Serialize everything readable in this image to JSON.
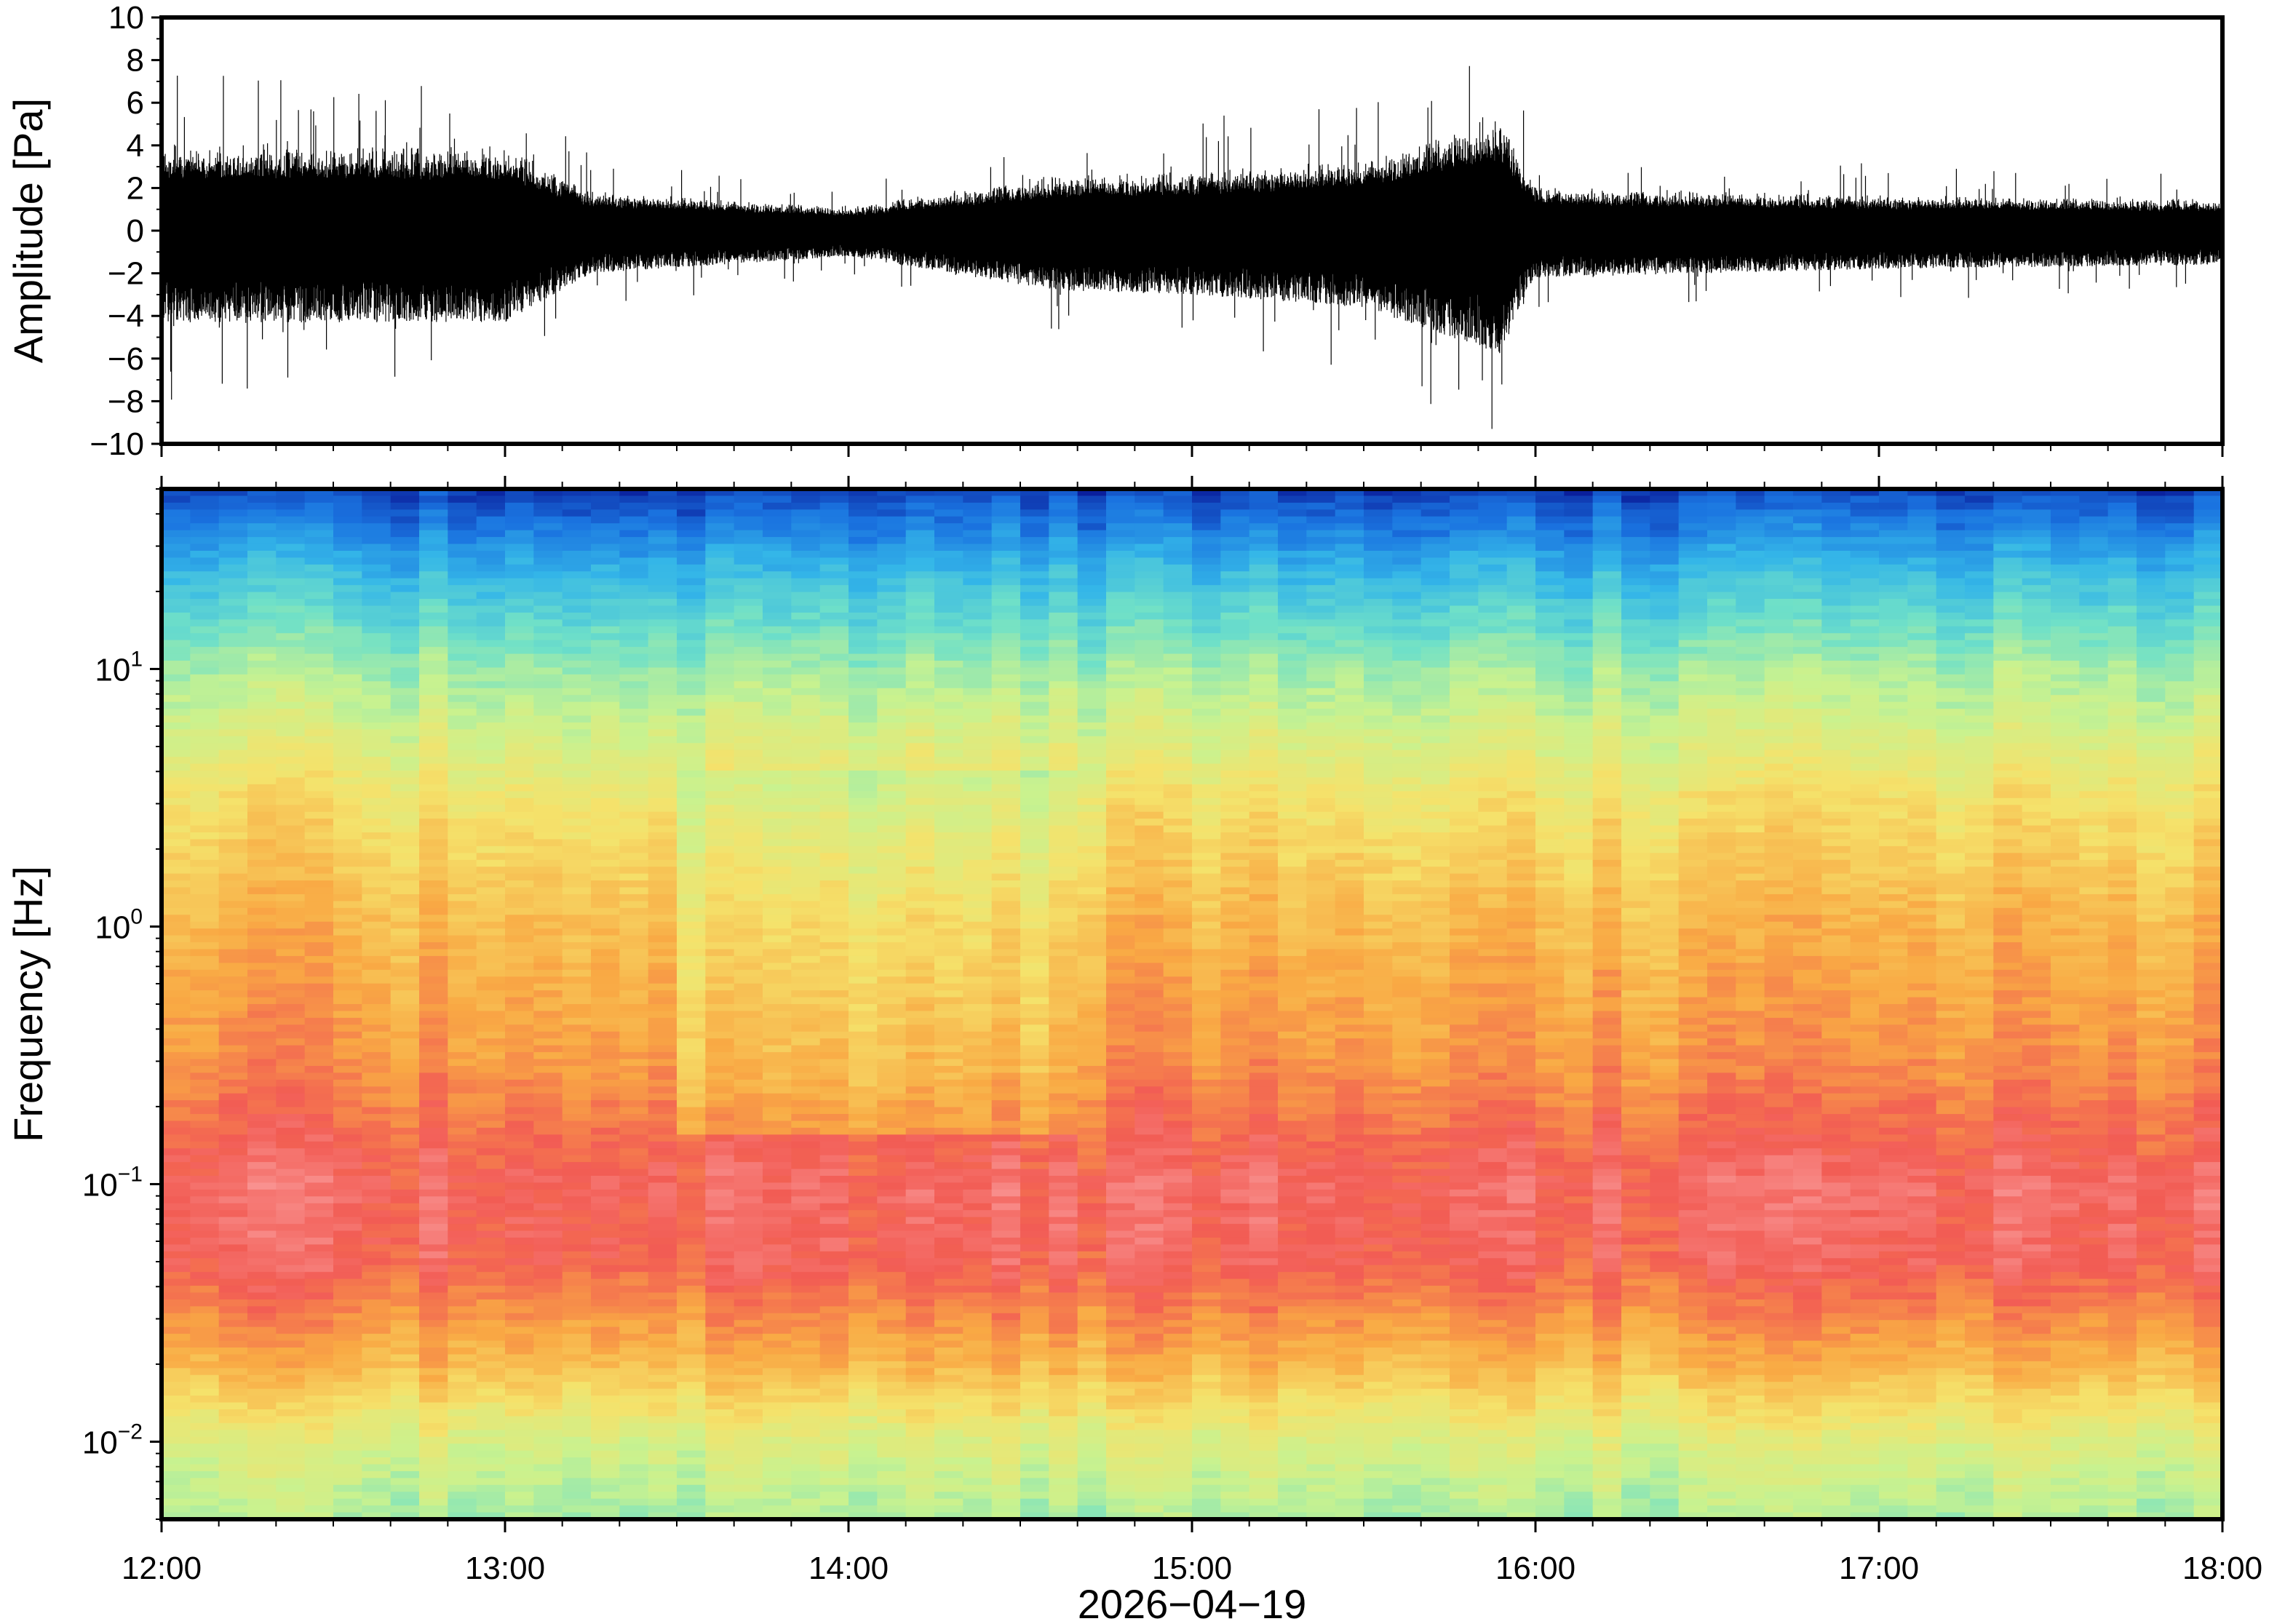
{
  "chart_data": [
    {
      "type": "line",
      "panel": "waveform",
      "ylabel": "Amplitude [Pa]",
      "ylim": [
        -10,
        10
      ],
      "yticks": [
        -10,
        -8,
        -6,
        -4,
        -2,
        0,
        2,
        4,
        6,
        8,
        10
      ],
      "ytick_labels": [
        "−10",
        "−8",
        "−6",
        "−4",
        "−2",
        "0",
        "2",
        "4",
        "6",
        "8",
        "10"
      ],
      "xlim": [
        "12:00",
        "18:00"
      ],
      "x_hours": [
        12.0,
        13.0,
        13.25,
        14.0,
        14.6,
        15.0,
        15.5,
        15.9,
        16.0,
        16.5,
        17.0,
        18.0
      ],
      "envelope": [
        4.3,
        4.3,
        2.0,
        1.2,
        2.8,
        3.0,
        3.6,
        5.8,
        2.2,
        2.0,
        1.8,
        1.6
      ],
      "color": "#000000",
      "grid": false
    },
    {
      "type": "heatmap",
      "panel": "spectrogram",
      "ylabel": "Frequency [Hz]",
      "yscale": "log",
      "ylim": [
        0.005,
        50
      ],
      "yticks": [
        0.01,
        0.1,
        1,
        10
      ],
      "ytick_labels": [
        {
          "base": "10",
          "exp": "−2"
        },
        {
          "base": "10",
          "exp": "−1"
        },
        {
          "base": "10",
          "exp": "0"
        },
        {
          "base": "10",
          "exp": "1"
        }
      ],
      "xlim": [
        "12:00",
        "18:00"
      ],
      "xticks": [
        "12:00",
        "13:00",
        "14:00",
        "15:00",
        "16:00",
        "17:00",
        "18:00"
      ],
      "xlabel": "2026−04−19",
      "colormap": [
        "#0a1f9c",
        "#1a73e0",
        "#34b6e8",
        "#6fe0c8",
        "#c9f28f",
        "#f5e26b",
        "#f9a944",
        "#f25c54",
        "#fba4a4"
      ],
      "grid": false
    }
  ]
}
